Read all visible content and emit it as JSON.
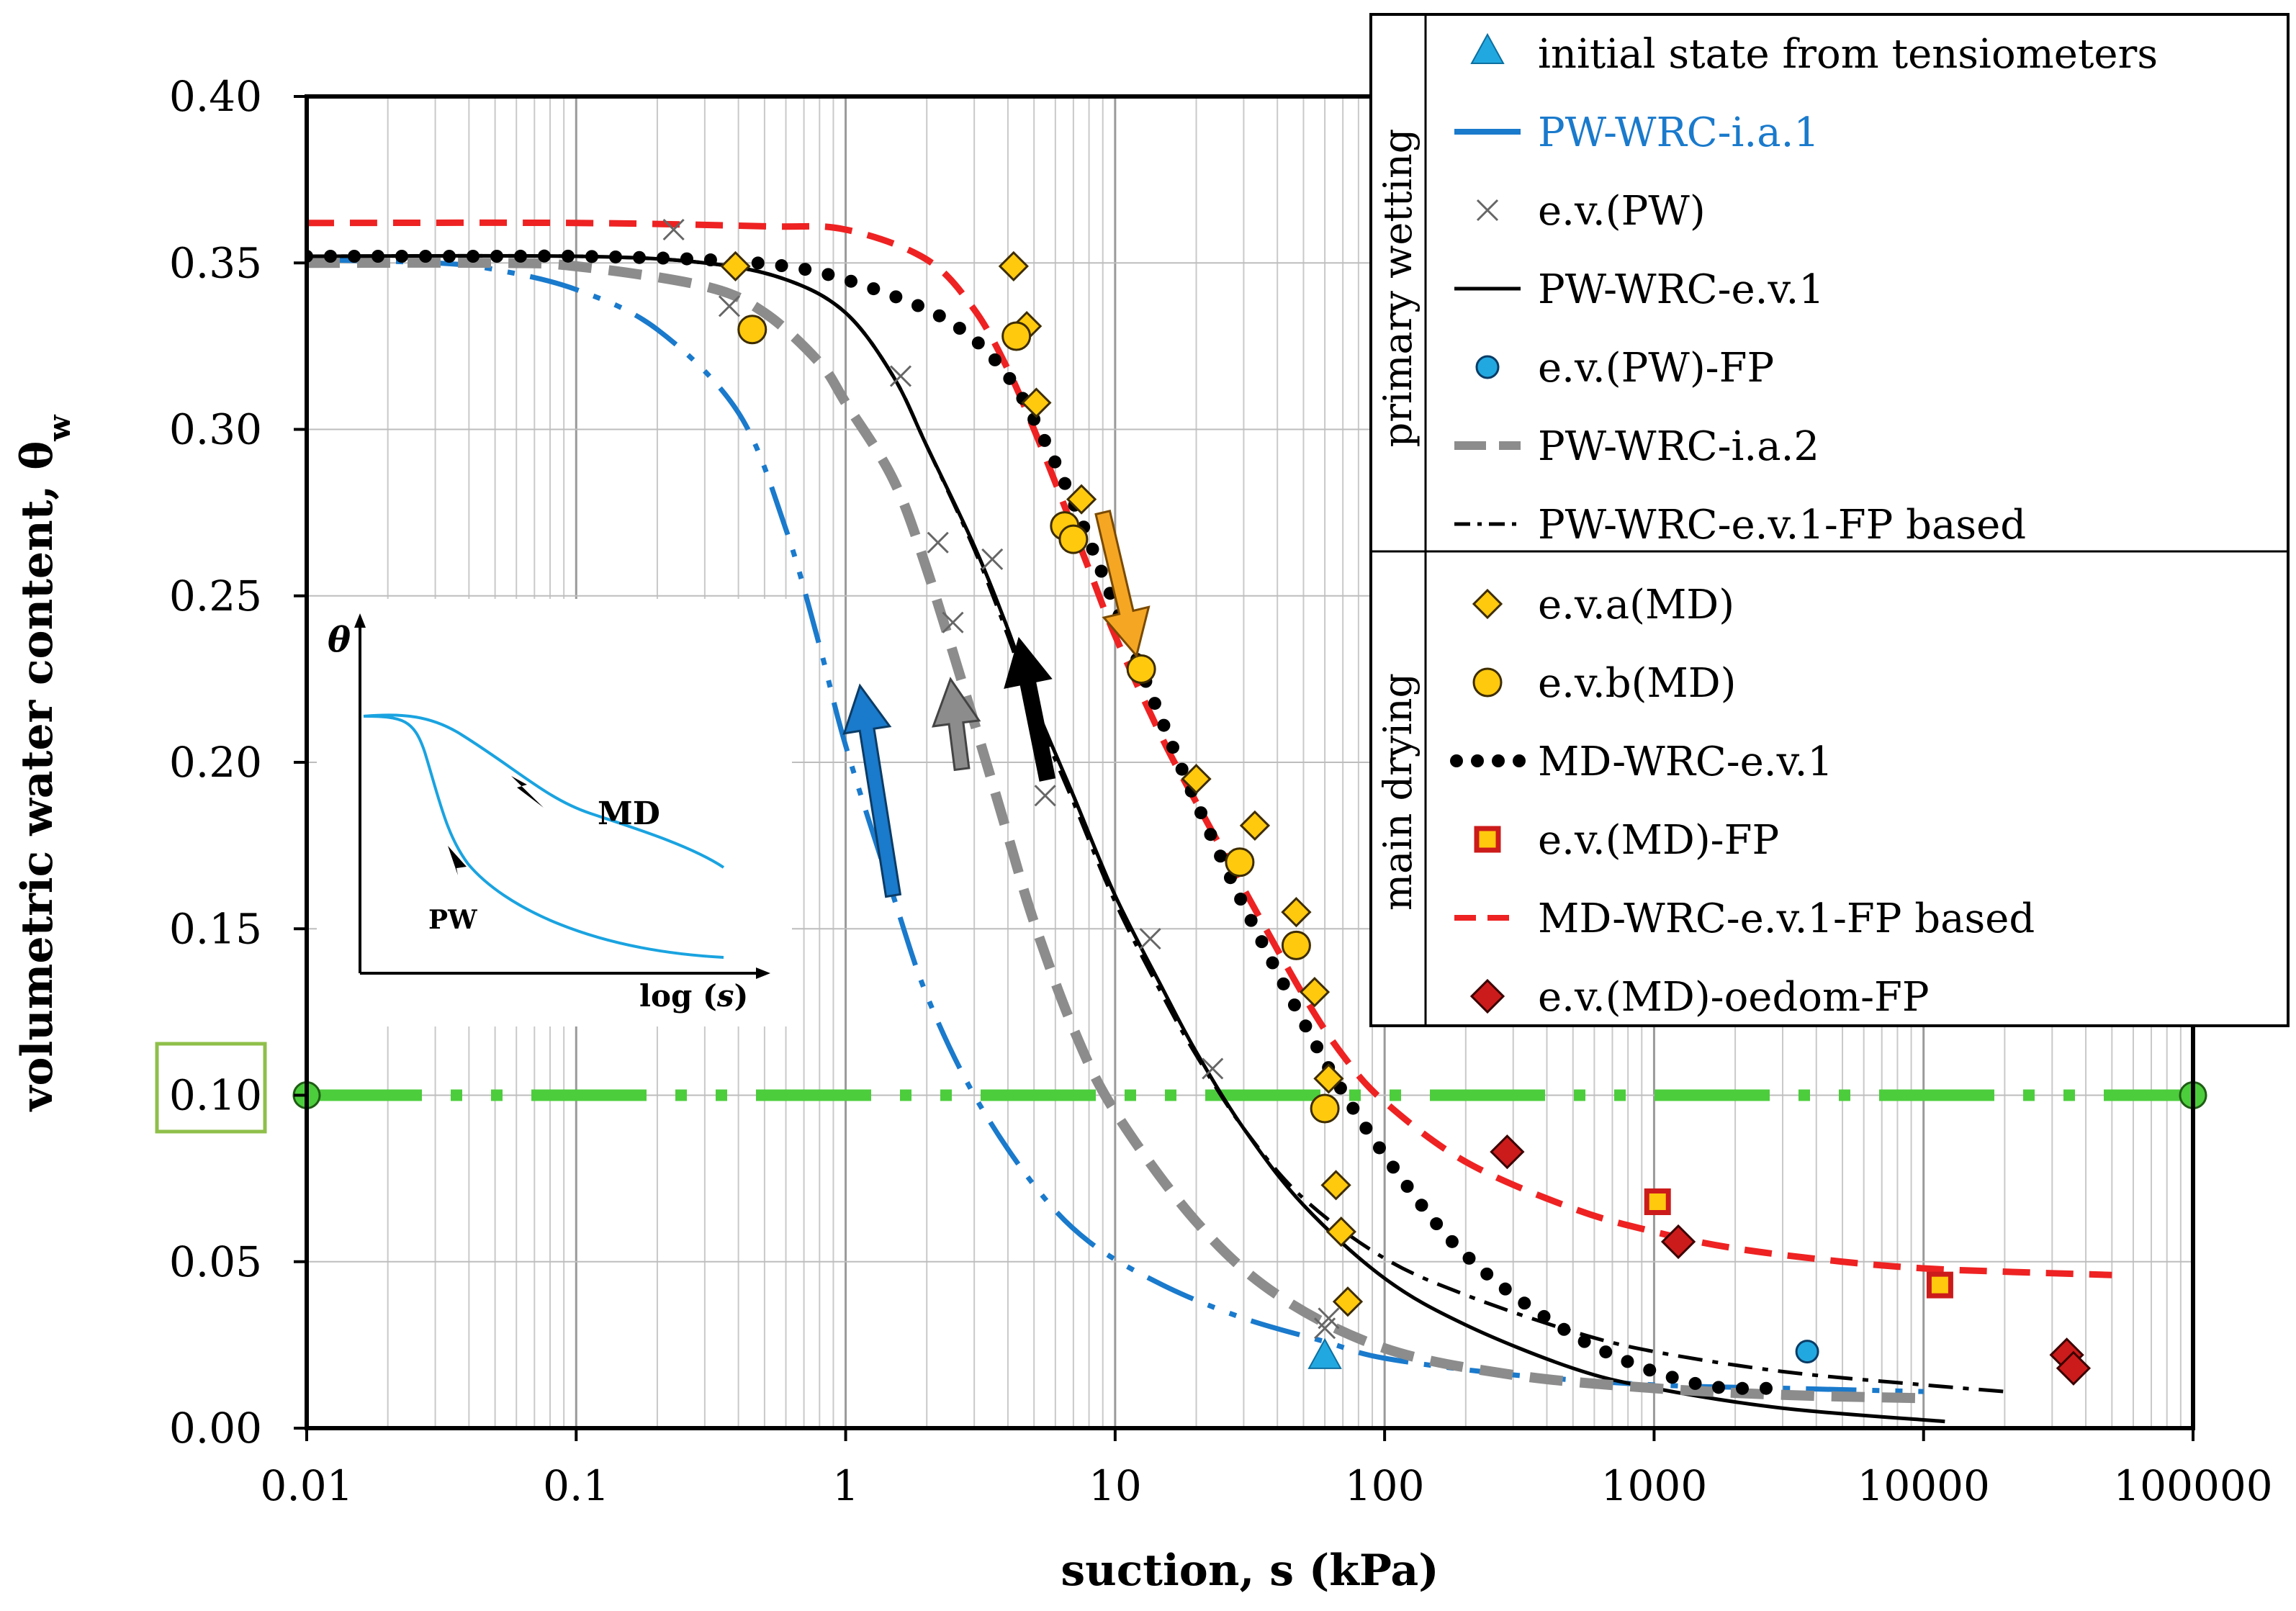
{
  "chart_data": {
    "type": "scatter",
    "title": "",
    "xlabel": "suction, s (kPa)",
    "ylabel": "volumetric water content, θ",
    "ylabel_sub": "w",
    "xscale": "log",
    "xlim": [
      0.01,
      100000
    ],
    "ylim": [
      0,
      0.4
    ],
    "x_ticks": [
      0.01,
      0.1,
      1,
      10,
      100,
      1000,
      10000,
      100000
    ],
    "x_tick_labels": [
      "0.01",
      "0.1",
      "1",
      "10",
      "100",
      "1000",
      "10000",
      "100000"
    ],
    "y_ticks": [
      0,
      0.05,
      0.1,
      0.15,
      0.2,
      0.25,
      0.3,
      0.35,
      0.4
    ],
    "y_tick_labels": [
      "0.00",
      "0.05",
      "0.10",
      "0.15",
      "0.20",
      "0.25",
      "0.30",
      "0.35",
      "0.40"
    ],
    "highlighted_y_tick": "0.10",
    "reference_line": {
      "y": 0.1,
      "x_from": 0.01,
      "x_to": 100000,
      "color": "#4ccd3c"
    },
    "colors": {
      "blue": "#1a7acc",
      "gray": "#8c8c8c",
      "red": "#ee2222",
      "black": "#000000",
      "gold": "#ffc90e",
      "orange": "#f5a623",
      "green": "#4ccd3c",
      "lightblue": "#1aa3e0",
      "darkred": "#cc1b1b"
    },
    "legend": {
      "group_primary_wetting": "primary wetting",
      "group_main_drying": "main drying",
      "entries": [
        "initial state from tensiometers",
        "PW-WRC-i.a.1",
        "e.v.(PW)",
        "PW-WRC-e.v.1",
        "e.v.(PW)-FP",
        "PW-WRC-i.a.2",
        "PW-WRC-e.v.1-FP based",
        "e.v.a(MD)",
        "e.v.b(MD)",
        "MD-WRC-e.v.1",
        "e.v.(MD)-FP",
        "MD-WRC-e.v.1-FP based",
        "e.v.(MD)-oedom-FP"
      ]
    },
    "series": [
      {
        "name": "initial state from tensiometers",
        "kind": "triangle",
        "x": [
          60
        ],
        "y": [
          0.021
        ]
      },
      {
        "name": "PW-WRC-i.a.1",
        "kind": "line",
        "x": [
          0.01,
          0.03,
          0.05,
          0.1,
          0.2,
          0.4,
          0.6,
          0.8,
          1,
          1.5,
          2,
          3,
          5,
          8,
          15,
          30,
          60,
          100,
          300,
          1000,
          3000,
          10000
        ],
        "y": [
          0.351,
          0.35,
          0.348,
          0.342,
          0.33,
          0.305,
          0.27,
          0.235,
          0.205,
          0.16,
          0.13,
          0.1,
          0.073,
          0.056,
          0.043,
          0.033,
          0.026,
          0.021,
          0.016,
          0.013,
          0.012,
          0.011
        ]
      },
      {
        "name": "e.v.(PW)",
        "kind": "x",
        "x": [
          0.23,
          0.37,
          1.6,
          2.2,
          2.5,
          3.5,
          5.5,
          13.5,
          23,
          60,
          62
        ],
        "y": [
          0.36,
          0.337,
          0.316,
          0.266,
          0.242,
          0.261,
          0.19,
          0.147,
          0.108,
          0.03,
          0.033
        ]
      },
      {
        "name": "PW-WRC-e.v.1",
        "kind": "line",
        "x": [
          0.01,
          0.1,
          0.3,
          0.6,
          1,
          1.5,
          2,
          3,
          4,
          5,
          7,
          10,
          15,
          20,
          30,
          50,
          100,
          200,
          500,
          1000,
          3000,
          12000
        ],
        "y": [
          0.352,
          0.352,
          0.35,
          0.345,
          0.335,
          0.316,
          0.295,
          0.265,
          0.24,
          0.218,
          0.19,
          0.16,
          0.132,
          0.113,
          0.09,
          0.067,
          0.045,
          0.031,
          0.018,
          0.012,
          0.006,
          0.002
        ]
      },
      {
        "name": "e.v.(PW)-FP",
        "kind": "circle_blue",
        "x": [
          3700
        ],
        "y": [
          0.023
        ]
      },
      {
        "name": "PW-WRC-i.a.2",
        "kind": "line",
        "x": [
          0.01,
          0.05,
          0.1,
          0.3,
          0.5,
          0.8,
          1,
          1.5,
          2,
          3,
          4,
          5,
          7,
          10,
          20,
          40,
          100,
          300,
          1000,
          3000,
          10000
        ],
        "y": [
          0.35,
          0.35,
          0.349,
          0.343,
          0.335,
          0.32,
          0.308,
          0.285,
          0.258,
          0.212,
          0.178,
          0.152,
          0.12,
          0.095,
          0.062,
          0.04,
          0.024,
          0.016,
          0.012,
          0.01,
          0.009
        ]
      },
      {
        "name": "PW-WRC-e.v.1-FP based",
        "kind": "line",
        "x": [
          0.01,
          0.1,
          0.3,
          0.6,
          1,
          1.5,
          2,
          3,
          4,
          5,
          7,
          10,
          15,
          20,
          30,
          50,
          100,
          200,
          500,
          1000,
          3000,
          10000,
          20000
        ],
        "y": [
          0.352,
          0.352,
          0.35,
          0.345,
          0.335,
          0.316,
          0.295,
          0.264,
          0.238,
          0.216,
          0.188,
          0.158,
          0.13,
          0.112,
          0.09,
          0.069,
          0.051,
          0.04,
          0.029,
          0.023,
          0.017,
          0.013,
          0.011
        ]
      },
      {
        "name": "e.v.a(MD)",
        "kind": "diamond_gold",
        "x": [
          0.39,
          4.2,
          4.7,
          5.1,
          7.5,
          20,
          33,
          47,
          55,
          62,
          66,
          69,
          73
        ],
        "y": [
          0.349,
          0.349,
          0.331,
          0.308,
          0.279,
          0.195,
          0.181,
          0.155,
          0.131,
          0.105,
          0.073,
          0.059,
          0.038
        ]
      },
      {
        "name": "e.v.b(MD)",
        "kind": "circle_gold",
        "x": [
          0.45,
          4.3,
          6.5,
          7.0,
          12.5,
          29,
          47,
          60
        ],
        "y": [
          0.33,
          0.328,
          0.271,
          0.267,
          0.228,
          0.17,
          0.145,
          0.096
        ]
      },
      {
        "name": "MD-WRC-e.v.1",
        "kind": "dots",
        "x": [
          0.01,
          0.05,
          0.1,
          0.3,
          0.6,
          1,
          2,
          3,
          4,
          5,
          7,
          10,
          15,
          20,
          30,
          50,
          70,
          100,
          150,
          200,
          300,
          500,
          700,
          1000,
          1500,
          2000,
          3000
        ],
        "y": [
          0.352,
          0.352,
          0.352,
          0.351,
          0.349,
          0.345,
          0.336,
          0.327,
          0.316,
          0.303,
          0.278,
          0.247,
          0.212,
          0.188,
          0.157,
          0.122,
          0.101,
          0.082,
          0.063,
          0.052,
          0.04,
          0.028,
          0.022,
          0.017,
          0.013,
          0.012,
          0.012
        ]
      },
      {
        "name": "e.v.(MD)-FP",
        "kind": "square_red",
        "x": [
          1030,
          11500
        ],
        "y": [
          0.068,
          0.043
        ]
      },
      {
        "name": "MD-WRC-e.v.1-FP based",
        "kind": "line",
        "x": [
          0.01,
          0.1,
          0.5,
          1,
          2,
          3,
          4,
          5,
          6,
          8,
          10,
          15,
          20,
          30,
          50,
          70,
          100,
          200,
          500,
          1000,
          2000,
          5000,
          10000,
          20000,
          50000
        ],
        "y": [
          0.362,
          0.362,
          0.361,
          0.36,
          0.351,
          0.336,
          0.318,
          0.3,
          0.284,
          0.258,
          0.238,
          0.207,
          0.188,
          0.162,
          0.13,
          0.112,
          0.098,
          0.08,
          0.066,
          0.059,
          0.054,
          0.05,
          0.048,
          0.047,
          0.046
        ]
      },
      {
        "name": "e.v.(MD)-oedom-FP",
        "kind": "diamond_red",
        "x": [
          285,
          1230,
          34000,
          36000
        ],
        "y": [
          0.083,
          0.056,
          0.022,
          0.018
        ]
      }
    ],
    "inset": {
      "y_axis_label": "θ",
      "x_axis_label_prefix": "log (",
      "x_axis_label_var": "s",
      "x_axis_label_suffix": ")",
      "curve_label_md": "MD",
      "curve_label_pw": "PW"
    }
  }
}
